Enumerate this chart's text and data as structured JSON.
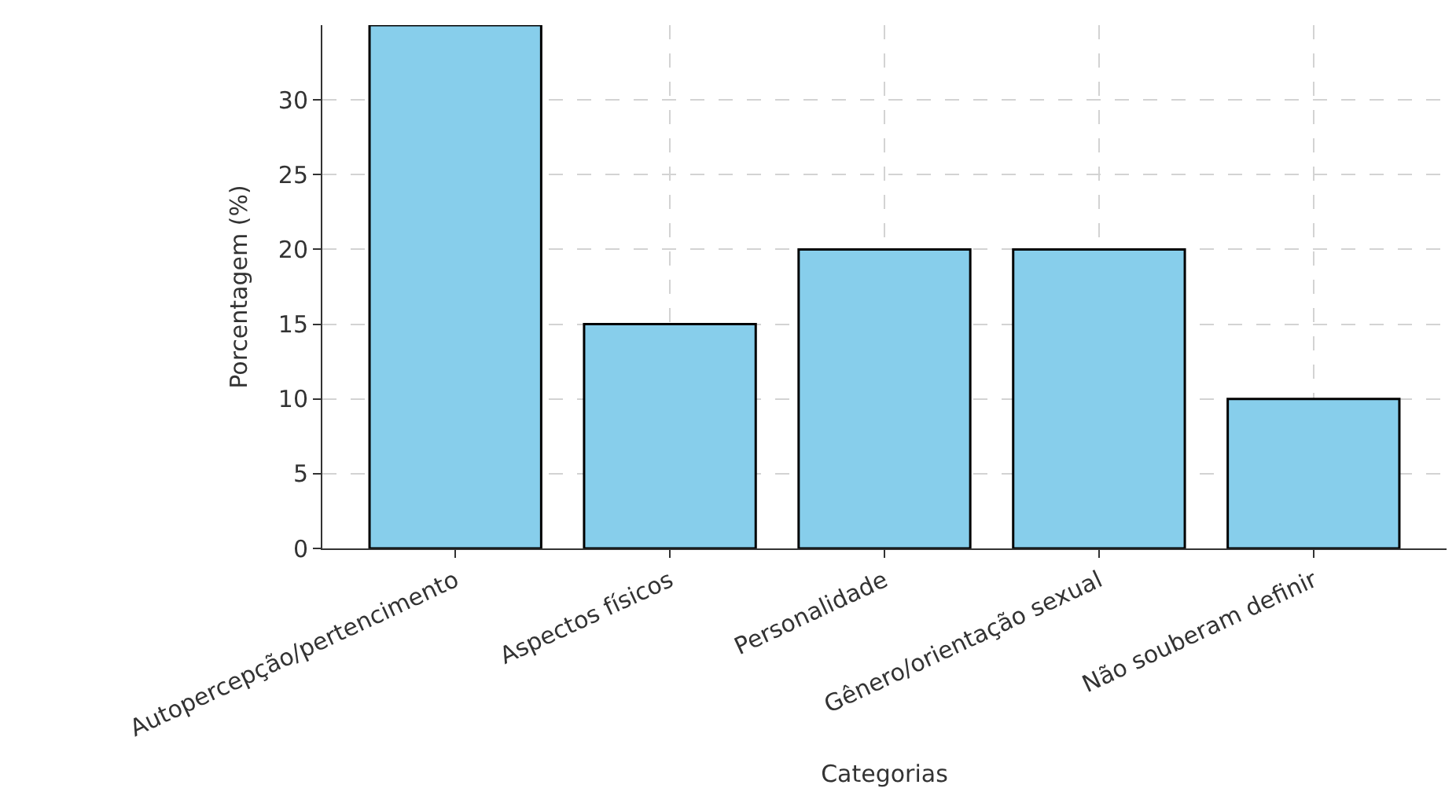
{
  "chart_data": {
    "type": "bar",
    "xlabel": "Categorias",
    "ylabel": "Porcentagem (%)",
    "categories": [
      "Autopercepção/pertencimento",
      "Aspectos físicos",
      "Personalidade",
      "Gênero/orientação sexual",
      "Não souberam definir"
    ],
    "values": [
      35,
      15,
      20,
      20,
      10
    ],
    "color": "#87ceeb",
    "ylim": [
      0,
      35
    ],
    "yticks": [
      0,
      5,
      10,
      15,
      20,
      25,
      30
    ],
    "grid": true
  }
}
